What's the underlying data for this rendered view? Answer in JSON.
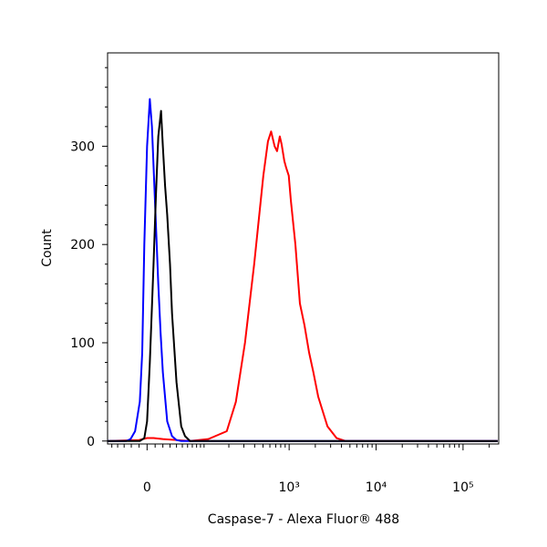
{
  "chart_data": {
    "type": "line",
    "xlabel": "Caspase-7 - Alexa Fluor® 488",
    "ylabel": "Count",
    "xscale": "biexponential",
    "linear_width": 46.5,
    "xlim": [
      -58,
      257000
    ],
    "ylim": [
      -3,
      395
    ],
    "xticks": [
      0,
      {
        "value": 1000,
        "label": "10³"
      },
      {
        "value": 10000,
        "label": "10⁴"
      },
      {
        "value": 100000,
        "label": "10⁵"
      }
    ],
    "xminor_ticks": [
      -50,
      -40,
      -30,
      -20,
      -10,
      10,
      20,
      30,
      40,
      50,
      60,
      70,
      80,
      90,
      100,
      200,
      300,
      400,
      500,
      600,
      700,
      800,
      900,
      2000,
      3000,
      4000,
      5000,
      6000,
      7000,
      8000,
      9000,
      20000,
      30000,
      40000,
      50000,
      60000,
      70000,
      80000,
      90000,
      200000
    ],
    "yticks": [
      0,
      100,
      200,
      300
    ],
    "yminor_ticks": [
      20,
      40,
      60,
      80,
      120,
      140,
      160,
      180,
      220,
      240,
      260,
      280,
      320,
      340,
      360,
      380
    ],
    "series": [
      {
        "color": "#ff0000",
        "x": [
          -55,
          -10,
          0,
          8,
          20,
          40,
          65,
          113,
          189,
          242,
          309,
          395,
          504,
          570,
          620,
          680,
          726,
          780,
          819,
          880,
          925,
          990,
          1046,
          1180,
          1330,
          1500,
          1697,
          1900,
          2162,
          2757,
          3511,
          4473,
          7254,
          250000
        ],
        "values": [
          0,
          1,
          3,
          3,
          2,
          1,
          0,
          2,
          10,
          40,
          100,
          180,
          270,
          305,
          315,
          300,
          295,
          310,
          302,
          285,
          278,
          270,
          245,
          200,
          140,
          118,
          90,
          70,
          45,
          15,
          3,
          0,
          0,
          0
        ]
      },
      {
        "color": "#0000ff",
        "x": [
          -58,
          -27,
          -21,
          -15,
          -9,
          -6,
          -3.4,
          0,
          3.4,
          6,
          8,
          11,
          14,
          17,
          20,
          26,
          33,
          40,
          48,
          250000
        ],
        "values": [
          0,
          0,
          2,
          10,
          40,
          90,
          200,
          300,
          348,
          320,
          280,
          220,
          160,
          110,
          70,
          20,
          5,
          1,
          0,
          0
        ]
      },
      {
        "color": "#000000",
        "x": [
          -58,
          -9,
          -3.4,
          0,
          3.4,
          8,
          11,
          14,
          17.6,
          20,
          23,
          26,
          30,
          33,
          40,
          48,
          55,
          65,
          250000
        ],
        "values": [
          0,
          0,
          3,
          20,
          80,
          180,
          250,
          310,
          336,
          300,
          260,
          230,
          180,
          130,
          60,
          15,
          5,
          0,
          0
        ]
      }
    ]
  }
}
